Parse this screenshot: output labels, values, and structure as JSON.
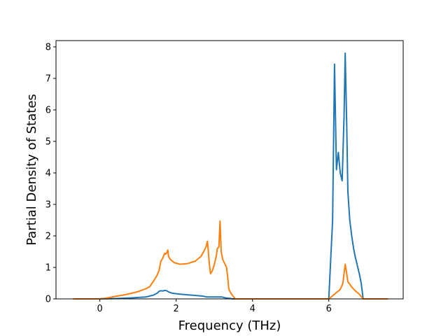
{
  "chart_data": {
    "type": "line",
    "title": "",
    "xlabel": "Frequency (THz)",
    "ylabel": "Partial Density of States",
    "xlim": [
      -1.15,
      7.95
    ],
    "ylim": [
      0,
      8.2
    ],
    "xticks": [
      0,
      2,
      4,
      6
    ],
    "yticks": [
      0,
      1,
      2,
      3,
      4,
      5,
      6,
      7,
      8
    ],
    "grid": false,
    "legend": null,
    "series": [
      {
        "color": "#1f77b4",
        "points": [
          [
            -0.7,
            0
          ],
          [
            0.0,
            0
          ],
          [
            0.4,
            0.01
          ],
          [
            0.8,
            0.03
          ],
          [
            1.2,
            0.06
          ],
          [
            1.4,
            0.12
          ],
          [
            1.5,
            0.18
          ],
          [
            1.55,
            0.24
          ],
          [
            1.6,
            0.26
          ],
          [
            1.65,
            0.25
          ],
          [
            1.7,
            0.27
          ],
          [
            1.75,
            0.26
          ],
          [
            1.8,
            0.22
          ],
          [
            1.9,
            0.18
          ],
          [
            2.1,
            0.15
          ],
          [
            2.4,
            0.12
          ],
          [
            2.7,
            0.09
          ],
          [
            2.8,
            0.06
          ],
          [
            3.0,
            0.06
          ],
          [
            3.2,
            0.06
          ],
          [
            3.3,
            0.03
          ],
          [
            3.5,
            0.0
          ],
          [
            4.0,
            0.0
          ],
          [
            5.0,
            0.0
          ],
          [
            6.0,
            0.0
          ],
          [
            6.1,
            2.5
          ],
          [
            6.15,
            7.45
          ],
          [
            6.2,
            4.1
          ],
          [
            6.25,
            4.65
          ],
          [
            6.3,
            4.0
          ],
          [
            6.35,
            3.75
          ],
          [
            6.4,
            5.8
          ],
          [
            6.43,
            7.8
          ],
          [
            6.47,
            5.5
          ],
          [
            6.5,
            3.4
          ],
          [
            6.55,
            2.5
          ],
          [
            6.6,
            2.0
          ],
          [
            6.65,
            1.6
          ],
          [
            6.7,
            1.3
          ],
          [
            6.8,
            0.8
          ],
          [
            6.85,
            0.5
          ],
          [
            6.88,
            0.2
          ],
          [
            6.9,
            0.0
          ],
          [
            7.5,
            0.0
          ]
        ]
      },
      {
        "color": "#ff7f0e",
        "points": [
          [
            -0.7,
            0
          ],
          [
            0.0,
            0
          ],
          [
            0.2,
            0.03
          ],
          [
            0.4,
            0.08
          ],
          [
            0.6,
            0.12
          ],
          [
            0.8,
            0.17
          ],
          [
            1.0,
            0.23
          ],
          [
            1.2,
            0.32
          ],
          [
            1.3,
            0.38
          ],
          [
            1.4,
            0.55
          ],
          [
            1.5,
            0.75
          ],
          [
            1.55,
            0.9
          ],
          [
            1.6,
            1.2
          ],
          [
            1.65,
            1.3
          ],
          [
            1.7,
            1.45
          ],
          [
            1.72,
            1.42
          ],
          [
            1.75,
            1.45
          ],
          [
            1.78,
            1.55
          ],
          [
            1.8,
            1.35
          ],
          [
            1.85,
            1.25
          ],
          [
            1.95,
            1.15
          ],
          [
            2.1,
            1.1
          ],
          [
            2.3,
            1.12
          ],
          [
            2.5,
            1.2
          ],
          [
            2.65,
            1.35
          ],
          [
            2.72,
            1.5
          ],
          [
            2.78,
            1.65
          ],
          [
            2.82,
            1.83
          ],
          [
            2.87,
            1.1
          ],
          [
            2.9,
            0.8
          ],
          [
            2.95,
            0.9
          ],
          [
            3.0,
            1.1
          ],
          [
            3.05,
            1.35
          ],
          [
            3.08,
            1.6
          ],
          [
            3.12,
            1.65
          ],
          [
            3.15,
            2.47
          ],
          [
            3.18,
            1.5
          ],
          [
            3.22,
            1.25
          ],
          [
            3.28,
            1.1
          ],
          [
            3.32,
            1.0
          ],
          [
            3.35,
            0.7
          ],
          [
            3.38,
            0.3
          ],
          [
            3.45,
            0.15
          ],
          [
            3.55,
            0.0
          ],
          [
            4.0,
            0.0
          ],
          [
            5.0,
            0.0
          ],
          [
            6.0,
            0.0
          ],
          [
            6.1,
            0.1
          ],
          [
            6.2,
            0.2
          ],
          [
            6.3,
            0.3
          ],
          [
            6.37,
            0.5
          ],
          [
            6.4,
            0.8
          ],
          [
            6.43,
            1.1
          ],
          [
            6.47,
            0.8
          ],
          [
            6.5,
            0.55
          ],
          [
            6.6,
            0.38
          ],
          [
            6.7,
            0.25
          ],
          [
            6.8,
            0.15
          ],
          [
            6.9,
            0.0
          ],
          [
            7.55,
            0.0
          ]
        ]
      }
    ]
  }
}
